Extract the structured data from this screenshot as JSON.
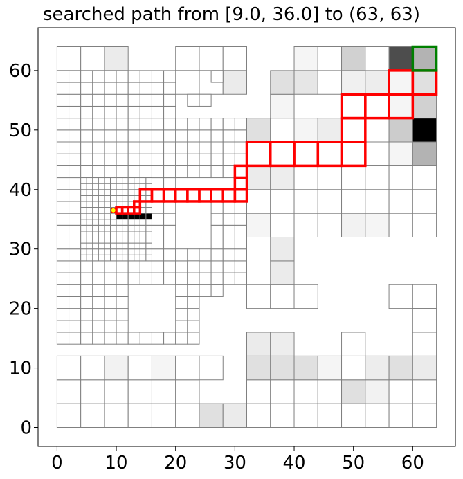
{
  "chart_data": {
    "type": "heatmap",
    "title": "searched path from [9.0, 36.0] to (63, 63)",
    "xlim": [
      -3.2,
      67.2
    ],
    "ylim": [
      -3.2,
      67.2
    ],
    "xticks": [
      0,
      10,
      20,
      30,
      40,
      50,
      60
    ],
    "yticks": [
      0,
      10,
      20,
      30,
      40,
      50,
      60
    ],
    "grid": false,
    "legend": "none",
    "colors": {
      "cell_edge": "#808080",
      "path": "#ff0000",
      "goal": "#008000",
      "start_marker_face": "#ffff00",
      "start_marker_edge": "#ff0000"
    },
    "start": [
      9.0,
      36.0
    ],
    "goal": [
      63,
      63
    ],
    "large_cells": {
      "description_size": 4,
      "cells": [
        [
          0,
          0,
          0
        ],
        [
          4,
          0,
          0
        ],
        [
          8,
          0,
          0
        ],
        [
          12,
          0,
          0
        ],
        [
          16,
          0,
          0
        ],
        [
          20,
          0,
          0
        ],
        [
          24,
          0,
          0.12
        ],
        [
          28,
          0,
          0.08
        ],
        [
          32,
          0,
          0
        ],
        [
          36,
          0,
          0
        ],
        [
          40,
          0,
          0
        ],
        [
          44,
          0,
          0
        ],
        [
          48,
          0,
          0
        ],
        [
          52,
          0,
          0
        ],
        [
          56,
          0,
          0
        ],
        [
          60,
          0,
          0
        ],
        [
          0,
          4,
          0
        ],
        [
          4,
          4,
          0
        ],
        [
          8,
          4,
          0
        ],
        [
          12,
          4,
          0
        ],
        [
          16,
          4,
          0
        ],
        [
          20,
          4,
          0
        ],
        [
          32,
          4,
          0
        ],
        [
          36,
          4,
          0
        ],
        [
          40,
          4,
          0
        ],
        [
          44,
          4,
          0
        ],
        [
          48,
          4,
          0.12
        ],
        [
          52,
          4,
          0.05
        ],
        [
          56,
          4,
          0
        ],
        [
          60,
          4,
          0
        ],
        [
          0,
          8,
          0
        ],
        [
          4,
          8,
          0
        ],
        [
          8,
          8,
          0.05
        ],
        [
          12,
          8,
          0
        ],
        [
          16,
          8,
          0.04
        ],
        [
          20,
          8,
          0
        ],
        [
          24,
          8,
          0
        ],
        [
          32,
          8,
          0.12
        ],
        [
          36,
          8,
          0.12
        ],
        [
          40,
          8,
          0.12
        ],
        [
          44,
          8,
          0.04
        ],
        [
          48,
          8,
          0
        ],
        [
          52,
          8,
          0.07
        ],
        [
          56,
          8,
          0.12
        ],
        [
          60,
          8,
          0.08
        ],
        [
          32,
          12,
          0.08
        ],
        [
          36,
          12,
          0.07
        ],
        [
          48,
          12,
          0
        ],
        [
          32,
          20,
          0
        ],
        [
          36,
          20,
          0
        ],
        [
          40,
          20,
          0
        ],
        [
          56,
          20,
          0
        ],
        [
          60,
          20,
          0
        ],
        [
          60,
          12,
          0
        ],
        [
          60,
          16,
          0
        ],
        [
          36,
          24,
          0.08
        ],
        [
          36,
          28,
          0.08
        ],
        [
          32,
          32,
          0.04
        ],
        [
          36,
          32,
          0
        ],
        [
          40,
          32,
          0
        ],
        [
          44,
          32,
          0
        ],
        [
          48,
          32,
          0.05
        ],
        [
          52,
          32,
          0.04
        ],
        [
          56,
          32,
          0
        ],
        [
          60,
          32,
          0
        ],
        [
          32,
          36,
          0
        ],
        [
          36,
          36,
          0
        ],
        [
          40,
          36,
          0
        ],
        [
          44,
          36,
          0
        ],
        [
          48,
          36,
          0
        ],
        [
          52,
          36,
          0
        ],
        [
          56,
          36,
          0
        ],
        [
          60,
          36,
          0
        ],
        [
          32,
          40,
          0.08
        ],
        [
          36,
          40,
          0.07
        ],
        [
          40,
          40,
          0
        ],
        [
          44,
          40,
          0
        ],
        [
          48,
          40,
          0
        ],
        [
          52,
          40,
          0
        ],
        [
          56,
          40,
          0
        ],
        [
          60,
          40,
          0
        ],
        [
          32,
          44,
          0
        ],
        [
          36,
          44,
          0
        ],
        [
          40,
          44,
          0
        ],
        [
          44,
          44,
          0
        ],
        [
          48,
          44,
          0
        ],
        [
          52,
          44,
          0
        ],
        [
          56,
          44,
          0.04
        ],
        [
          60,
          44,
          0.3
        ],
        [
          32,
          48,
          0.12
        ],
        [
          36,
          48,
          0
        ],
        [
          40,
          48,
          0.04
        ],
        [
          44,
          48,
          0.07
        ],
        [
          48,
          48,
          0
        ],
        [
          52,
          48,
          0
        ],
        [
          56,
          48,
          0.2
        ],
        [
          60,
          48,
          1.0
        ],
        [
          36,
          52,
          0.04
        ],
        [
          48,
          52,
          0
        ],
        [
          52,
          52,
          0
        ],
        [
          56,
          52,
          0.04
        ],
        [
          60,
          52,
          0.18
        ],
        [
          36,
          56,
          0.12
        ],
        [
          40,
          56,
          0.1
        ],
        [
          44,
          56,
          0
        ],
        [
          48,
          56,
          0.06
        ],
        [
          52,
          56,
          0.07
        ],
        [
          56,
          56,
          0.04
        ],
        [
          60,
          56,
          0.12
        ],
        [
          0,
          60,
          0
        ],
        [
          4,
          60,
          0
        ],
        [
          8,
          60,
          0.08
        ],
        [
          20,
          60,
          0
        ],
        [
          24,
          60,
          0
        ],
        [
          28,
          60,
          0
        ],
        [
          40,
          60,
          0.04
        ],
        [
          44,
          60,
          0
        ],
        [
          48,
          60,
          0.18
        ],
        [
          52,
          60,
          0
        ],
        [
          56,
          60,
          0.7
        ],
        [
          60,
          60,
          0.3
        ],
        [
          20,
          56,
          0
        ],
        [
          24,
          56,
          0
        ],
        [
          28,
          56,
          0.08
        ]
      ]
    },
    "path_cells": [
      [
        10,
        36,
        1
      ],
      [
        11,
        36,
        1
      ],
      [
        12,
        36,
        1
      ],
      [
        13,
        36,
        1
      ],
      [
        13,
        37,
        1
      ],
      [
        14,
        38,
        2
      ],
      [
        16,
        38,
        2
      ],
      [
        18,
        38,
        2
      ],
      [
        20,
        38,
        2
      ],
      [
        22,
        38,
        2
      ],
      [
        24,
        38,
        2
      ],
      [
        26,
        38,
        2
      ],
      [
        28,
        38,
        2
      ],
      [
        30,
        38,
        2
      ],
      [
        30,
        40,
        2
      ],
      [
        30,
        42,
        2
      ],
      [
        32,
        44,
        4
      ],
      [
        36,
        44,
        4
      ],
      [
        40,
        44,
        4
      ],
      [
        44,
        44,
        4
      ],
      [
        48,
        44,
        4
      ],
      [
        48,
        48,
        4
      ],
      [
        48,
        52,
        4
      ],
      [
        52,
        52,
        4
      ],
      [
        56,
        52,
        4
      ],
      [
        56,
        56,
        4
      ],
      [
        60,
        56,
        4
      ]
    ],
    "goal_cell": [
      60,
      60,
      4
    ],
    "black_cells": [
      [
        10,
        35
      ],
      [
        11,
        35
      ],
      [
        12,
        35
      ],
      [
        13,
        35
      ],
      [
        14,
        35
      ],
      [
        15,
        35
      ]
    ]
  }
}
